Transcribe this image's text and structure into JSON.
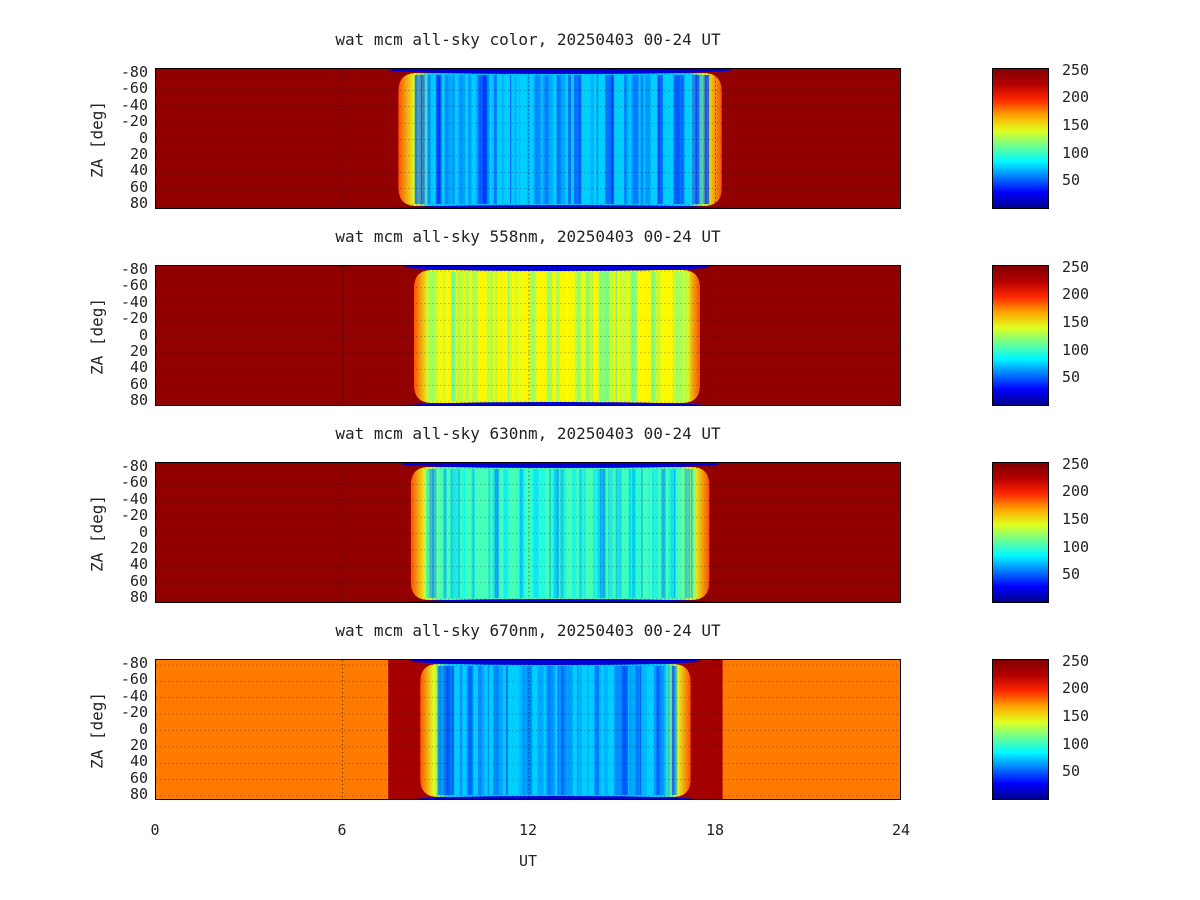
{
  "chart_data": [
    {
      "type": "heatmap",
      "title": "wat mcm all-sky color, 20250403 00-24 UT",
      "ylabel": "ZA [deg]",
      "yticks": [
        "-80",
        "-60",
        "-40",
        "-20",
        "0",
        "20",
        "40",
        "60",
        "80"
      ],
      "colorbar_ticks": [
        "250",
        "200",
        "150",
        "100",
        "50"
      ],
      "colorbar_range": [
        0,
        255
      ],
      "background_value": 250,
      "night_interval_ut": [
        7.8,
        18.2
      ],
      "night_values": [
        30,
        80
      ],
      "grid": true
    },
    {
      "type": "heatmap",
      "title": "wat mcm all-sky 558nm, 20250403 00-24 UT",
      "ylabel": "ZA [deg]",
      "yticks": [
        "-80",
        "-60",
        "-40",
        "-20",
        "0",
        "20",
        "40",
        "60",
        "80"
      ],
      "colorbar_ticks": [
        "250",
        "200",
        "150",
        "100",
        "50"
      ],
      "colorbar_range": [
        0,
        255
      ],
      "background_value": 250,
      "night_interval_ut": [
        8.3,
        17.5
      ],
      "night_values": [
        110,
        160
      ],
      "grid": true
    },
    {
      "type": "heatmap",
      "title": "wat mcm all-sky 630nm, 20250403 00-24 UT",
      "ylabel": "ZA [deg]",
      "yticks": [
        "-80",
        "-60",
        "-40",
        "-20",
        "0",
        "20",
        "40",
        "60",
        "80"
      ],
      "colorbar_ticks": [
        "250",
        "200",
        "150",
        "100",
        "50"
      ],
      "colorbar_range": [
        0,
        255
      ],
      "background_value": 250,
      "night_interval_ut": [
        8.2,
        17.8
      ],
      "night_values": [
        60,
        110
      ],
      "grid": true
    },
    {
      "type": "heatmap",
      "title": "wat mcm all-sky 670nm, 20250403 00-24 UT",
      "ylabel": "ZA [deg]",
      "yticks": [
        "-80",
        "-60",
        "-40",
        "-20",
        "0",
        "20",
        "40",
        "60",
        "80"
      ],
      "colorbar_ticks": [
        "250",
        "200",
        "150",
        "100",
        "50"
      ],
      "colorbar_range": [
        0,
        255
      ],
      "background_value": 190,
      "twilight_value": 245,
      "night_interval_ut": [
        8.5,
        17.2
      ],
      "night_values": [
        40,
        80
      ],
      "grid": true
    }
  ],
  "x_axis": {
    "label": "UT",
    "range": [
      0,
      24
    ],
    "ticks": [
      "0",
      "6",
      "12",
      "18",
      "24"
    ]
  }
}
